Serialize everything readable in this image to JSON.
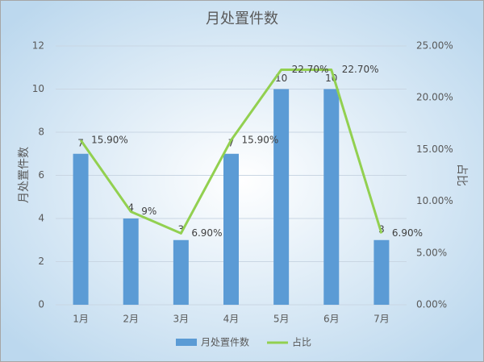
{
  "chart_data": {
    "type": "combo",
    "title": "月处置件数",
    "y_label": "月处置件数",
    "y2_label": "占比",
    "categories": [
      "1月",
      "2月",
      "3月",
      "4月",
      "5月",
      "6月",
      "7月"
    ],
    "series": [
      {
        "name": "月处置件数",
        "type": "bar",
        "color": "#5b9bd5",
        "values": [
          7,
          4,
          3,
          7,
          10,
          10,
          3
        ]
      },
      {
        "name": "占比",
        "type": "line",
        "axis": "y2",
        "color": "#92d050",
        "values": [
          15.9,
          9,
          6.9,
          15.9,
          22.7,
          22.7,
          6.9
        ],
        "value_labels": [
          "15.90%",
          "9%",
          "6.90%",
          "15.90%",
          "22.70%",
          "22.70%",
          "6.90%"
        ]
      }
    ],
    "ylim": [
      0,
      12
    ],
    "yticks": [
      0,
      2,
      4,
      6,
      8,
      10,
      12
    ],
    "y2lim": [
      0,
      25
    ],
    "y2ticks": [
      {
        "value": 0,
        "label": "0.00%"
      },
      {
        "value": 5,
        "label": "5.00%"
      },
      {
        "value": 10,
        "label": "10.00%"
      },
      {
        "value": 15,
        "label": "15.00%"
      },
      {
        "value": 20,
        "label": "20.00%"
      },
      {
        "value": 25,
        "label": "25.00%"
      }
    ],
    "grid": true,
    "legend": "bottom"
  }
}
